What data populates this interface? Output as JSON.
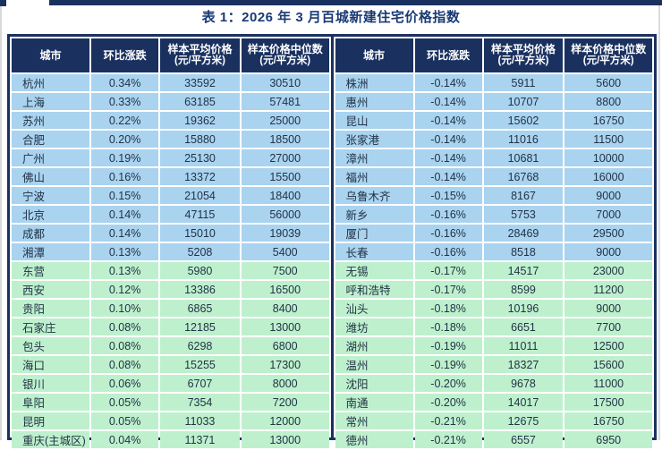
{
  "title": "表 1：2026 年 3 月百城新建住宅价格指数",
  "colors": {
    "navy": "#1a3160",
    "title": "#1a3a75",
    "blue": "#a9d3ef",
    "green": "#bef0cd",
    "bodytext": "#223347"
  },
  "columns": [
    {
      "label": "城市"
    },
    {
      "label": "环比涨跌"
    },
    {
      "label": "样本平均价格",
      "sub": "(元/平方米)"
    },
    {
      "label": "样本价格中位数",
      "sub": "(元/平方米)"
    }
  ],
  "layout": {
    "blue_row_count": 10
  },
  "tables": {
    "left": {
      "rows": [
        [
          "杭州",
          "0.34%",
          "33592",
          "30510"
        ],
        [
          "上海",
          "0.33%",
          "63185",
          "57481"
        ],
        [
          "苏州",
          "0.22%",
          "19362",
          "25000"
        ],
        [
          "合肥",
          "0.20%",
          "15880",
          "18500"
        ],
        [
          "广州",
          "0.19%",
          "25130",
          "27000"
        ],
        [
          "佛山",
          "0.16%",
          "13372",
          "15500"
        ],
        [
          "宁波",
          "0.15%",
          "21054",
          "18400"
        ],
        [
          "北京",
          "0.14%",
          "47115",
          "56000"
        ],
        [
          "成都",
          "0.14%",
          "15010",
          "19039"
        ],
        [
          "湘潭",
          "0.13%",
          "5208",
          "5400"
        ],
        [
          "东营",
          "0.13%",
          "5980",
          "7500"
        ],
        [
          "西安",
          "0.12%",
          "13386",
          "16500"
        ],
        [
          "贵阳",
          "0.10%",
          "6865",
          "8400"
        ],
        [
          "石家庄",
          "0.08%",
          "12185",
          "13000"
        ],
        [
          "包头",
          "0.08%",
          "6298",
          "6800"
        ],
        [
          "海口",
          "0.08%",
          "15255",
          "17300"
        ],
        [
          "银川",
          "0.06%",
          "6707",
          "8000"
        ],
        [
          "阜阳",
          "0.05%",
          "7354",
          "7200"
        ],
        [
          "昆明",
          "0.05%",
          "11033",
          "12000"
        ],
        [
          "重庆(主城区)",
          "0.04%",
          "11371",
          "13000"
        ]
      ]
    },
    "right": {
      "rows": [
        [
          "株洲",
          "-0.14%",
          "5911",
          "5600"
        ],
        [
          "惠州",
          "-0.14%",
          "10707",
          "8800"
        ],
        [
          "昆山",
          "-0.14%",
          "15602",
          "16750"
        ],
        [
          "张家港",
          "-0.14%",
          "11016",
          "11500"
        ],
        [
          "漳州",
          "-0.14%",
          "10681",
          "10000"
        ],
        [
          "福州",
          "-0.14%",
          "16768",
          "16000"
        ],
        [
          "乌鲁木齐",
          "-0.15%",
          "8167",
          "9000"
        ],
        [
          "新乡",
          "-0.16%",
          "5753",
          "7000"
        ],
        [
          "厦门",
          "-0.16%",
          "28469",
          "29500"
        ],
        [
          "长春",
          "-0.16%",
          "8518",
          "9000"
        ],
        [
          "无锡",
          "-0.17%",
          "14517",
          "23000"
        ],
        [
          "呼和浩特",
          "-0.17%",
          "8599",
          "11200"
        ],
        [
          "汕头",
          "-0.18%",
          "10196",
          "9000"
        ],
        [
          "潍坊",
          "-0.18%",
          "6651",
          "7700"
        ],
        [
          "湖州",
          "-0.19%",
          "11011",
          "12500"
        ],
        [
          "温州",
          "-0.19%",
          "18327",
          "15600"
        ],
        [
          "沈阳",
          "-0.20%",
          "9678",
          "11000"
        ],
        [
          "南通",
          "-0.20%",
          "14017",
          "17500"
        ],
        [
          "常州",
          "-0.21%",
          "12675",
          "16750"
        ],
        [
          "德州",
          "-0.21%",
          "6557",
          "6950"
        ]
      ]
    }
  }
}
